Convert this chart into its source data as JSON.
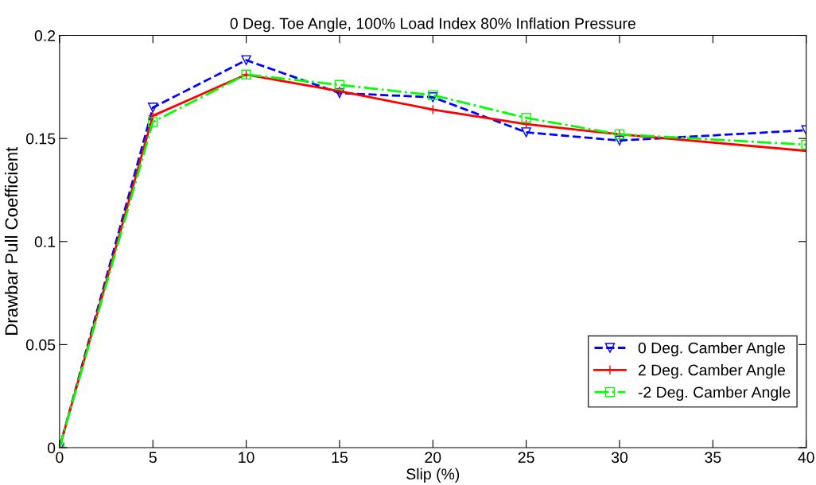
{
  "chart_data": {
    "type": "line",
    "title": "0 Deg. Toe Angle, 100% Load Index 80% Inflation Pressure",
    "xlabel": "Slip (%)",
    "ylabel": "Drawbar Pull Coefficient",
    "x": [
      0,
      5,
      10,
      15,
      20,
      25,
      30,
      40
    ],
    "series": [
      {
        "name": "0 Deg. Camber Angle",
        "color": "#0000ff",
        "line_style": "dashed",
        "marker": "triangle",
        "values": [
          0,
          0.165,
          0.188,
          0.172,
          0.17,
          0.153,
          0.149,
          0.154
        ]
      },
      {
        "name": "2 Deg. Camber Angle",
        "color": "#ff0000",
        "line_style": "solid",
        "marker": "cross",
        "values": [
          0,
          0.161,
          0.181,
          0.173,
          0.164,
          0.157,
          0.152,
          0.144
        ]
      },
      {
        "name": "-2 Deg. Camber Angle",
        "color": "#00ff00",
        "line_style": "dashdot",
        "marker": "square",
        "values": [
          0,
          0.158,
          0.181,
          0.176,
          0.171,
          0.16,
          0.152,
          0.147
        ]
      }
    ],
    "xlim": [
      0,
      40
    ],
    "xticks": [
      0,
      5,
      10,
      15,
      20,
      25,
      30,
      35,
      40
    ],
    "ylim": [
      0,
      0.2
    ],
    "yticks": [
      0,
      0.05,
      0.1,
      0.15,
      0.2
    ],
    "grid": false,
    "legend": "bottom right"
  }
}
